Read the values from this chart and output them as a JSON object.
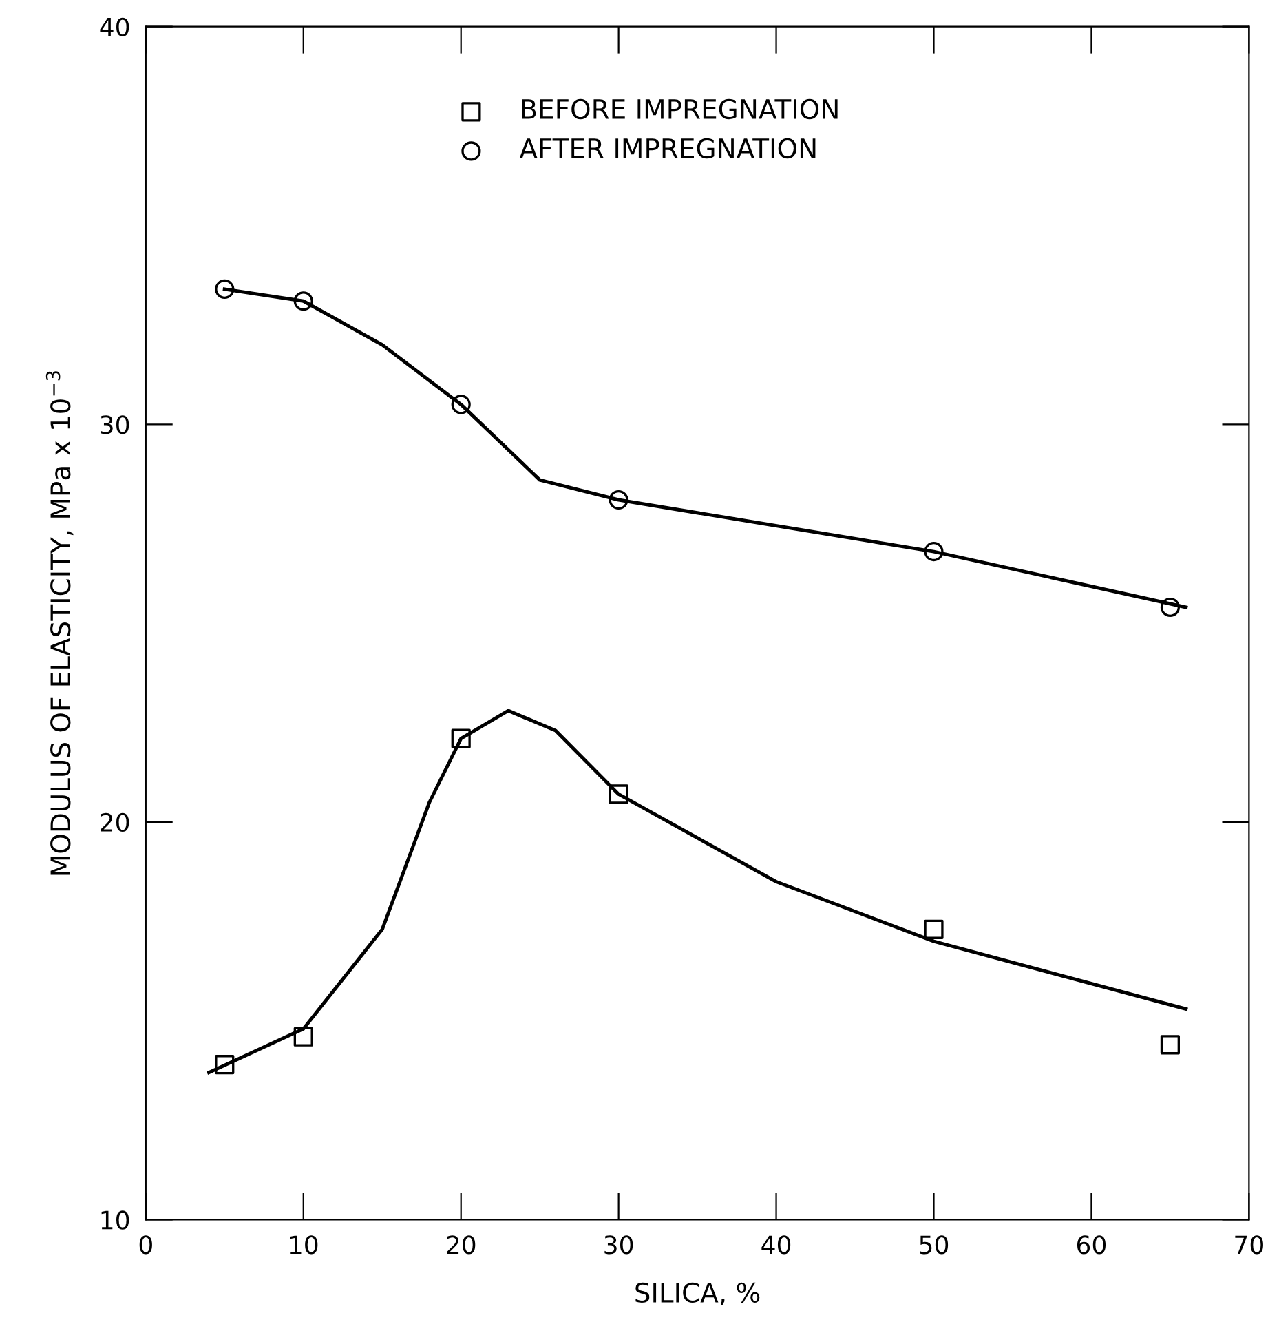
{
  "chart_data": {
    "type": "scatter",
    "xlabel": "SILICA, %",
    "ylabel": "MODULUS OF ELASTICITY, MPa x 10$^{−3}$",
    "xlim": [
      0,
      70
    ],
    "xticks": [
      0,
      10,
      20,
      30,
      40,
      50,
      60,
      70
    ],
    "ylim": [
      10,
      40
    ],
    "yticks": [
      10,
      20,
      30,
      40
    ],
    "grid": false,
    "legend": "top",
    "x": [
      5,
      10,
      20,
      30,
      50,
      65
    ],
    "series": [
      {
        "name": "BEFORE IMPREGNATION",
        "marker": "square",
        "color": "#000000",
        "values": [
          13.9,
          14.6,
          22.1,
          20.7,
          17.3,
          14.4
        ]
      },
      {
        "name": "AFTER IMPREGNATION",
        "marker": "circle",
        "color": "#000000",
        "values": [
          33.4,
          33.1,
          30.5,
          28.1,
          26.8,
          25.4
        ]
      },
      {
        "type": "line",
        "marker": "none",
        "line_style": "solid",
        "color": "#000000",
        "x": [
          4,
          10,
          15,
          18,
          20,
          23,
          26,
          30,
          40,
          50,
          66
        ],
        "values": [
          13.7,
          14.8,
          17.3,
          20.5,
          22.1,
          22.8,
          22.3,
          20.7,
          18.5,
          17.0,
          15.3
        ]
      },
      {
        "type": "line",
        "marker": "none",
        "line_style": "solid",
        "color": "#000000",
        "x": [
          5,
          10,
          15,
          20,
          25,
          30,
          50,
          66
        ],
        "values": [
          33.4,
          33.1,
          32.0,
          30.5,
          28.6,
          28.1,
          26.8,
          25.4
        ]
      }
    ]
  }
}
